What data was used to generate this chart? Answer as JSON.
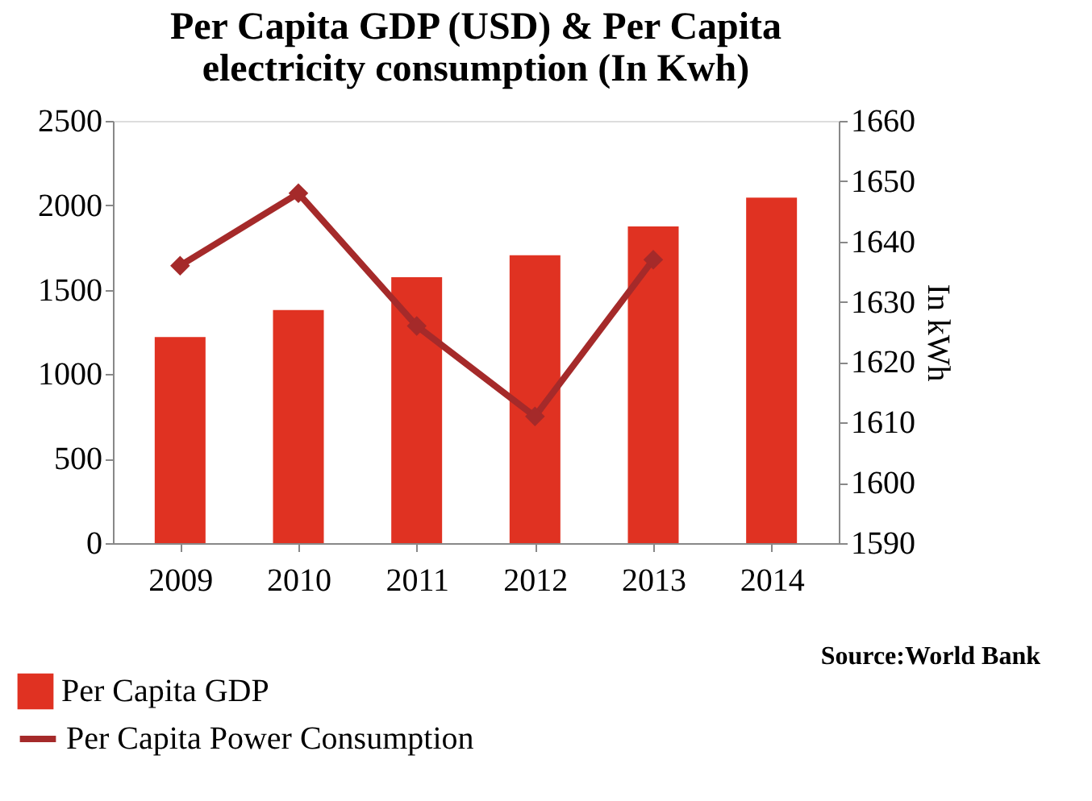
{
  "chart_data": {
    "type": "bar",
    "title": "Per Capita GDP (USD) & Per Capita electricity consumption (In Kwh)",
    "categories": [
      "2009",
      "2010",
      "2011",
      "2012",
      "2013",
      "2014"
    ],
    "series": [
      {
        "name": "Per Capita GDP",
        "color": "#e03222",
        "values": [
          1220,
          1380,
          1575,
          1705,
          1875,
          2045
        ]
      },
      {
        "name": "Per Capita Power Consumption",
        "type": "line",
        "axis": "y2",
        "color": "#a52a2a",
        "values": [
          1636,
          1648,
          1626,
          1611,
          1637,
          null
        ]
      }
    ],
    "ylim": [
      0,
      2500
    ],
    "yticks": [
      0,
      500,
      1000,
      1500,
      2000,
      2500
    ],
    "y2lim": [
      1590,
      1660
    ],
    "y2ticks": [
      1590,
      1600,
      1610,
      1620,
      1630,
      1640,
      1650,
      1660
    ],
    "y2label": "In kWh",
    "annotations": [
      "Source:World Bank"
    ],
    "grid": false,
    "legend": "bottom",
    "marker": "diamond",
    "line_style": "solid"
  }
}
